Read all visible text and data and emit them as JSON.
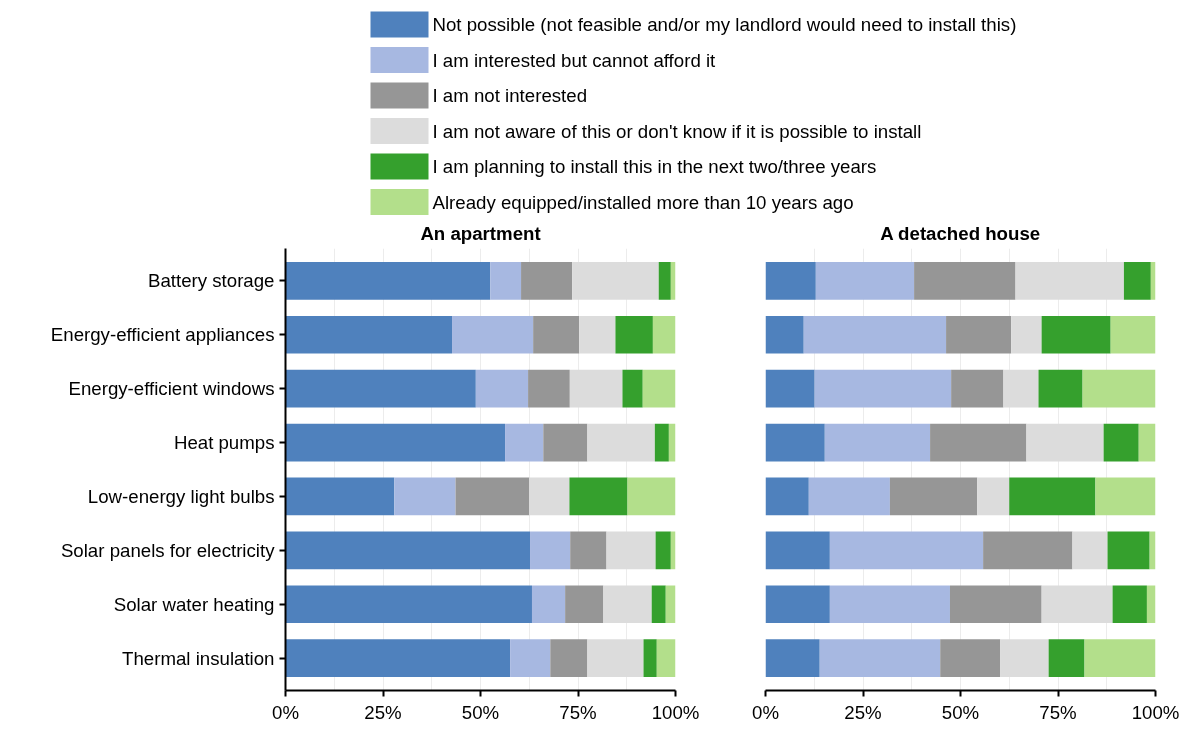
{
  "chart_data": [
    {
      "type": "bar",
      "orientation": "horizontal",
      "stacked": true,
      "title": "An apartment",
      "categories": [
        "Battery storage",
        "Energy-efficient appliances",
        "Energy-efficient windows",
        "Heat pumps",
        "Low-energy light bulbs",
        "Solar panels for electricity",
        "Solar water heating",
        "Thermal insulation"
      ],
      "series": [
        {
          "name": "Not possible (not feasible and/or my landlord would need to install this)",
          "color": "#4f81bd",
          "values": [
            52.5,
            42.7,
            48.8,
            56.3,
            27.9,
            62.7,
            63.2,
            57.6
          ]
        },
        {
          "name": "I am interested but cannot afford it",
          "color": "#a7b8e1",
          "values": [
            7.9,
            20.8,
            13.4,
            9.8,
            15.7,
            10.3,
            8.5,
            10.3
          ]
        },
        {
          "name": "I am not interested",
          "color": "#969696",
          "values": [
            13.1,
            11.8,
            10.7,
            11.3,
            18.9,
            9.3,
            9.8,
            9.5
          ]
        },
        {
          "name": "I am not aware of this or don't know if it is possible to install",
          "color": "#dcdcdc",
          "values": [
            22.2,
            9.3,
            13.5,
            17.3,
            10.3,
            12.6,
            12.4,
            14.4
          ]
        },
        {
          "name": "I am planning to install this in the next two/three years",
          "color": "#35a02d",
          "values": [
            3.1,
            9.6,
            5.2,
            3.6,
            14.9,
            3.9,
            3.6,
            3.4
          ]
        },
        {
          "name": "Already equipped/installed more than 10 years ago",
          "color": "#b3df8b",
          "values": [
            1.2,
            5.8,
            8.4,
            1.7,
            12.3,
            1.2,
            2.5,
            4.8
          ]
        }
      ],
      "xlim": [
        0,
        100
      ],
      "xticks": [
        {
          "value": 0,
          "label": "0%"
        },
        {
          "value": 12.5,
          "label": null
        },
        {
          "value": 25,
          "label": "25%"
        },
        {
          "value": 37.5,
          "label": null
        },
        {
          "value": 50,
          "label": "50%"
        },
        {
          "value": 62.5,
          "label": null
        },
        {
          "value": 75,
          "label": "75%"
        },
        {
          "value": 87.5,
          "label": null
        },
        {
          "value": 100,
          "label": "100%"
        }
      ],
      "grid": "x",
      "legend": "top"
    },
    {
      "type": "bar",
      "orientation": "horizontal",
      "stacked": true,
      "title": "A detached house",
      "categories": [
        null,
        null,
        null,
        null,
        null,
        null,
        null,
        null
      ],
      "series": [
        {
          "color": "#4f81bd",
          "values": [
            12.9,
            9.8,
            12.6,
            15.2,
            11.1,
            16.5,
            16.5,
            13.9
          ]
        },
        {
          "color": "#a7b8e1",
          "values": [
            25.2,
            36.5,
            35.0,
            27.0,
            20.8,
            39.3,
            30.8,
            30.9
          ]
        },
        {
          "color": "#969696",
          "values": [
            26.0,
            16.7,
            13.4,
            24.7,
            22.4,
            22.9,
            23.5,
            15.4
          ]
        },
        {
          "color": "#dcdcdc",
          "values": [
            27.8,
            7.8,
            9.0,
            19.8,
            8.2,
            9.0,
            18.2,
            12.4
          ]
        },
        {
          "color": "#35a02d",
          "values": [
            6.9,
            17.7,
            11.3,
            9.0,
            22.1,
            10.8,
            8.8,
            9.2
          ]
        },
        {
          "color": "#b3df8b",
          "values": [
            1.2,
            11.5,
            18.7,
            4.3,
            15.4,
            1.5,
            2.2,
            18.2
          ]
        }
      ],
      "xlim": [
        0,
        100
      ],
      "xticks": [
        {
          "value": 0,
          "label": "0%"
        },
        {
          "value": 12.5,
          "label": null
        },
        {
          "value": 25,
          "label": "25%"
        },
        {
          "value": 37.5,
          "label": null
        },
        {
          "value": 50,
          "label": "50%"
        },
        {
          "value": 62.5,
          "label": null
        },
        {
          "value": 75,
          "label": "75%"
        },
        {
          "value": 87.5,
          "label": null
        },
        {
          "value": 100,
          "label": "100%"
        }
      ],
      "grid": "x",
      "tick_labels": "x",
      "legend": false
    }
  ]
}
